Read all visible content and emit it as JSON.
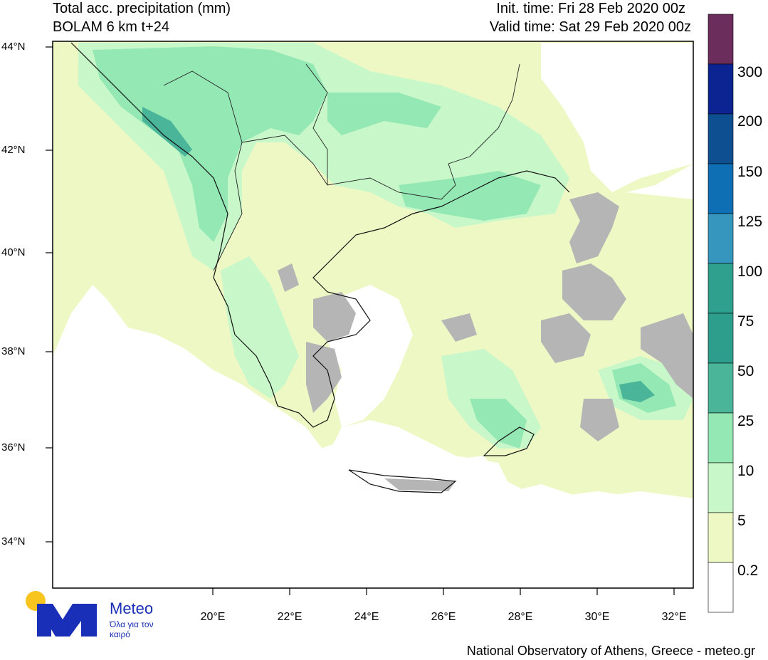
{
  "header": {
    "title_line1": "Total acc. precipitation (mm)",
    "title_line2": "BOLAM 6 km t+24",
    "init_time": "Init. time: Fri 28 Feb 2020 00z",
    "valid_time": "Valid time: Sat 29 Feb 2020 00z"
  },
  "axes": {
    "lat_labels": [
      "44°N",
      "42°N",
      "40°N",
      "38°N",
      "36°N",
      "34°N"
    ],
    "lon_labels": [
      "20°E",
      "22°E",
      "24°E",
      "26°E",
      "28°E",
      "30°E",
      "32°E"
    ]
  },
  "colorbar": {
    "levels": [
      "300",
      "200",
      "150",
      "125",
      "100",
      "75",
      "50",
      "25",
      "10",
      "5",
      "0.2"
    ],
    "colors": [
      "#6b2d5c",
      "#0b2491",
      "#0d4f91",
      "#0f6fb4",
      "#3796bd",
      "#2fa08e",
      "#2e9e8c",
      "#4bb59a",
      "#93e8b4",
      "#c8f8c9",
      "#eef8c4",
      "#ffffff"
    ]
  },
  "palette": {
    "land_dry": "#b5b5b5",
    "precip_0_2_5": "#eef8c4",
    "precip_5_10": "#c8f8c9",
    "precip_10_25": "#93e8b4",
    "precip_25_50": "#4bb59a",
    "sea": "#ffffff"
  },
  "logo": {
    "name": "Meteo",
    "tagline": "Όλα για τον καιρό"
  },
  "footer": "National Observatory of Athens, Greece - meteo.gr"
}
